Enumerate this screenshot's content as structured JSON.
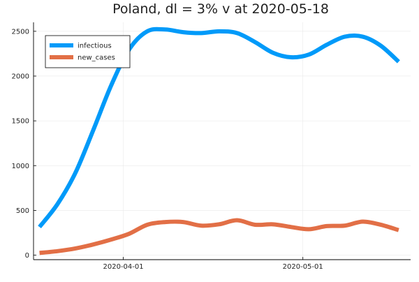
{
  "chart_data": {
    "type": "line",
    "title": "Poland,  dl = 3% v at 2020-05-18",
    "xlabel": "",
    "ylabel": "",
    "x_type": "date",
    "x_range": [
      "2020-03-17",
      "2020-05-19"
    ],
    "y_range": [
      -50,
      2600
    ],
    "x_ticks": [
      {
        "value": "2020-04-01",
        "label": "2020-04-01"
      },
      {
        "value": "2020-05-01",
        "label": "2020-05-01"
      }
    ],
    "y_ticks": [
      0,
      500,
      1000,
      1500,
      2000,
      2500
    ],
    "grid": true,
    "legend_position": "top-left",
    "series": [
      {
        "name": "infectious",
        "color": "#009af9",
        "points": [
          [
            "2020-03-18",
            315
          ],
          [
            "2020-03-21",
            570
          ],
          [
            "2020-03-24",
            920
          ],
          [
            "2020-03-27",
            1400
          ],
          [
            "2020-03-30",
            1900
          ],
          [
            "2020-04-02",
            2300
          ],
          [
            "2020-04-05",
            2500
          ],
          [
            "2020-04-08",
            2520
          ],
          [
            "2020-04-11",
            2490
          ],
          [
            "2020-04-14",
            2480
          ],
          [
            "2020-04-17",
            2500
          ],
          [
            "2020-04-20",
            2480
          ],
          [
            "2020-04-23",
            2380
          ],
          [
            "2020-04-26",
            2260
          ],
          [
            "2020-04-29",
            2210
          ],
          [
            "2020-05-02",
            2240
          ],
          [
            "2020-05-05",
            2350
          ],
          [
            "2020-05-08",
            2440
          ],
          [
            "2020-05-11",
            2440
          ],
          [
            "2020-05-14",
            2340
          ],
          [
            "2020-05-17",
            2160
          ]
        ]
      },
      {
        "name": "new_cases",
        "color": "#e26f46",
        "points": [
          [
            "2020-03-18",
            25
          ],
          [
            "2020-03-21",
            45
          ],
          [
            "2020-03-24",
            75
          ],
          [
            "2020-03-27",
            120
          ],
          [
            "2020-03-30",
            175
          ],
          [
            "2020-04-02",
            240
          ],
          [
            "2020-04-05",
            340
          ],
          [
            "2020-04-08",
            370
          ],
          [
            "2020-04-11",
            370
          ],
          [
            "2020-04-14",
            330
          ],
          [
            "2020-04-17",
            345
          ],
          [
            "2020-04-20",
            390
          ],
          [
            "2020-04-23",
            340
          ],
          [
            "2020-04-26",
            345
          ],
          [
            "2020-04-29",
            315
          ],
          [
            "2020-05-02",
            290
          ],
          [
            "2020-05-05",
            325
          ],
          [
            "2020-05-08",
            330
          ],
          [
            "2020-05-11",
            375
          ],
          [
            "2020-05-14",
            340
          ],
          [
            "2020-05-17",
            280
          ]
        ]
      }
    ]
  }
}
